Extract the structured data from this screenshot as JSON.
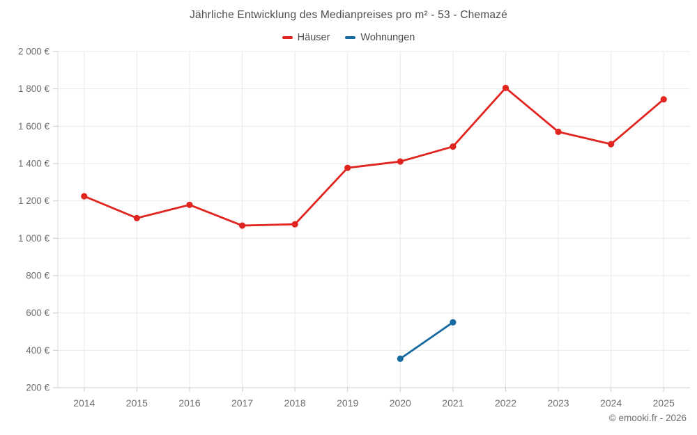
{
  "title": "Jährliche Entwicklung des Medianpreises pro m² - 53 - Chemazé",
  "footer": {
    "copyright": "© emooki.fr - 2026"
  },
  "legend": {
    "items": [
      {
        "label": "Häuser"
      },
      {
        "label": "Wohnungen"
      }
    ]
  },
  "chart_data": {
    "type": "line",
    "title": "Jährliche Entwicklung des Medianpreises pro m² - 53 - Chemazé",
    "categories": [
      "2014",
      "2015",
      "2016",
      "2017",
      "2018",
      "2019",
      "2020",
      "2021",
      "2022",
      "2023",
      "2024",
      "2025"
    ],
    "series": [
      {
        "name": "Häuser",
        "color": "#e0241f",
        "values": [
          1225,
          1108,
          1179,
          1068,
          1075,
          1377,
          1411,
          1491,
          1805,
          1570,
          1504,
          1744
        ]
      },
      {
        "name": "Wohnungen",
        "color": "#166aa0",
        "values": [
          null,
          null,
          null,
          null,
          null,
          null,
          355,
          550,
          null,
          null,
          null,
          null
        ]
      }
    ],
    "xlabel": "",
    "ylabel": "",
    "ylim": [
      200,
      2000
    ],
    "y_ticks": [
      200,
      400,
      600,
      800,
      1000,
      1200,
      1400,
      1600,
      1800,
      2000
    ],
    "y_tick_labels": [
      "200 €",
      "400 €",
      "600 €",
      "800 €",
      "1 000 €",
      "1 200 €",
      "1 400 €",
      "1 600 €",
      "1 800 €",
      "2 000 €"
    ],
    "grid": true,
    "legend_position": "top",
    "colors": {
      "grid": "#e9e9e9",
      "axis": "#cfcfcf",
      "tick": "#c9c9c9",
      "axis_text": "#6e6e6e",
      "title_text": "#4c4c4c"
    }
  }
}
